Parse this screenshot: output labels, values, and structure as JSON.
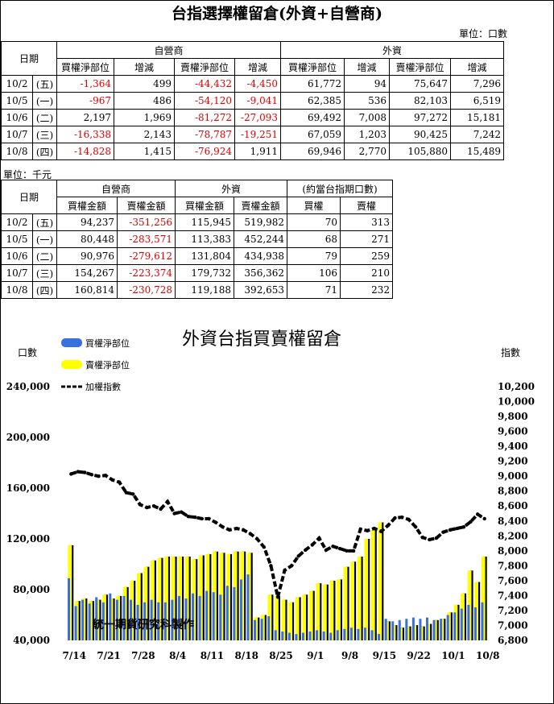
{
  "page_title": "台指選擇權留倉(外資+自營商)",
  "unit_contracts": "單位：口數",
  "unit_amount": "單位：千元",
  "table1": {
    "date_header": "日期",
    "group_dealer": "自營商",
    "group_foreign": "外資",
    "subheaders": [
      "買權淨部位",
      "增減",
      "賣權淨部位",
      "增減",
      "買權淨部位",
      "增減",
      "賣權淨部位",
      "增減"
    ],
    "rows": [
      {
        "date": "10/2",
        "day": "(五)",
        "cells": [
          "-1,364",
          "499",
          "-44,432",
          "-4,450",
          "61,772",
          "94",
          "75,647",
          "7,296"
        ]
      },
      {
        "date": "10/5",
        "day": "(一)",
        "cells": [
          "-967",
          "486",
          "-54,120",
          "-9,041",
          "62,385",
          "536",
          "82,103",
          "6,519"
        ]
      },
      {
        "date": "10/6",
        "day": "(二)",
        "cells": [
          "2,197",
          "1,969",
          "-81,272",
          "-27,093",
          "69,492",
          "7,008",
          "97,272",
          "15,181"
        ]
      },
      {
        "date": "10/7",
        "day": "(三)",
        "cells": [
          "-16,338",
          "2,143",
          "-78,787",
          "-19,251",
          "67,059",
          "1,203",
          "90,425",
          "7,242"
        ]
      },
      {
        "date": "10/8",
        "day": "(四)",
        "cells": [
          "-14,828",
          "1,415",
          "-76,924",
          "1,911",
          "69,946",
          "2,770",
          "105,880",
          "15,489"
        ]
      }
    ]
  },
  "table2": {
    "date_header": "日期",
    "group_dealer": "自營商",
    "group_foreign": "外資",
    "group_equiv": "(約當台指期口數)",
    "subheaders": [
      "買權金額",
      "賣權金額",
      "買權金額",
      "賣權金額",
      "買權",
      "賣權"
    ],
    "rows": [
      {
        "date": "10/2",
        "day": "(五)",
        "cells": [
          "94,237",
          "-351,256",
          "115,945",
          "519,982",
          "70",
          "313"
        ]
      },
      {
        "date": "10/5",
        "day": "(一)",
        "cells": [
          "80,448",
          "-283,571",
          "113,383",
          "452,244",
          "68",
          "271"
        ]
      },
      {
        "date": "10/6",
        "day": "(二)",
        "cells": [
          "90,976",
          "-279,612",
          "131,804",
          "434,938",
          "79",
          "259"
        ]
      },
      {
        "date": "10/7",
        "day": "(三)",
        "cells": [
          "154,267",
          "-223,374",
          "179,732",
          "356,362",
          "106",
          "210"
        ]
      },
      {
        "date": "10/8",
        "day": "(四)",
        "cells": [
          "160,814",
          "-230,728",
          "119,188",
          "392,653",
          "71",
          "232"
        ]
      }
    ]
  },
  "chart_data": {
    "type": "bar",
    "title": "外資台指買賣權留倉",
    "left_axis_label": "口數",
    "right_axis_label": "指數",
    "watermark": "統一期貨研究科製作",
    "ylim": [
      40000,
      240000
    ],
    "yticks": [
      "40,000",
      "80,000",
      "120,000",
      "160,000",
      "200,000",
      "240,000"
    ],
    "yticks_values": [
      40000,
      80000,
      120000,
      160000,
      200000,
      240000
    ],
    "y2lim": [
      6800,
      10200
    ],
    "y2ticks": [
      "6,800",
      "7,000",
      "7,200",
      "7,400",
      "7,600",
      "7,800",
      "8,000",
      "8,200",
      "8,400",
      "8,600",
      "8,800",
      "9,000",
      "9,200",
      "9,400",
      "9,600",
      "9,800",
      "10,000",
      "10,200"
    ],
    "y2ticks_values": [
      6800,
      7000,
      7200,
      7400,
      7600,
      7800,
      8000,
      8200,
      8400,
      8600,
      8800,
      9000,
      9200,
      9400,
      9600,
      9800,
      10000,
      10200
    ],
    "xtick_labels": [
      "7/14",
      "7/21",
      "7/28",
      "8/4",
      "8/11",
      "8/18",
      "8/25",
      "9/1",
      "9/8",
      "9/15",
      "9/22",
      "10/1",
      "10/8"
    ],
    "xtick_index": [
      0,
      5,
      10,
      15,
      20,
      25,
      30,
      35,
      40,
      45,
      50,
      55,
      60
    ],
    "series": [
      {
        "name": "買權淨部位",
        "color": "#3a6fe0",
        "values": [
          89000,
          67000,
          72000,
          69000,
          74000,
          70000,
          77000,
          72000,
          75000,
          72000,
          68000,
          70000,
          72000,
          70000,
          70000,
          72000,
          75000,
          73000,
          77000,
          75000,
          79000,
          78000,
          76000,
          83000,
          82000,
          88000,
          92000,
          56000,
          57000,
          59000,
          48000,
          47000,
          46000,
          45000,
          46000,
          47000,
          48000,
          47000,
          46000,
          48000,
          49000,
          50000,
          49000,
          50000,
          48000,
          45000,
          57000,
          55000,
          56000,
          57000,
          58000,
          57000,
          58000,
          56000,
          57000,
          60000,
          62000,
          65000,
          68000,
          66000,
          70000
        ]
      },
      {
        "name": "賣權淨部位",
        "color": "#ffff00",
        "values": [
          115000,
          71000,
          73000,
          71000,
          72000,
          76000,
          73000,
          75000,
          82000,
          87000,
          93000,
          98000,
          103000,
          105000,
          106000,
          106000,
          106000,
          106000,
          104000,
          107000,
          108000,
          110000,
          109000,
          108000,
          110000,
          110000,
          109000,
          58000,
          60000,
          76000,
          75000,
          72000,
          70000,
          74000,
          76000,
          79000,
          85000,
          84000,
          87000,
          88000,
          98000,
          102000,
          106000,
          120000,
          127000,
          133000,
          55000,
          52000,
          50000,
          51000,
          52000,
          51000,
          53000,
          56000,
          57000,
          62000,
          68000,
          77000,
          95000,
          86000,
          106000
        ]
      },
      {
        "name": "加權指數",
        "color": "#000000",
        "values": [
          9030,
          9060,
          9050,
          9020,
          9000,
          9010,
          8950,
          8920,
          8780,
          8760,
          8620,
          8580,
          8600,
          8560,
          8660,
          8500,
          8520,
          8460,
          8450,
          8430,
          8430,
          8380,
          8320,
          8280,
          8300,
          8280,
          8230,
          8160,
          8050,
          7800,
          7380,
          7740,
          7800,
          7930,
          8010,
          8080,
          8170,
          8010,
          8060,
          8030,
          8000,
          8000,
          8290,
          8270,
          8300,
          8260,
          8340,
          8440,
          8450,
          8420,
          8320,
          8180,
          8150,
          8170,
          8250,
          8280,
          8300,
          8320,
          8390,
          8490,
          8430
        ]
      }
    ]
  }
}
